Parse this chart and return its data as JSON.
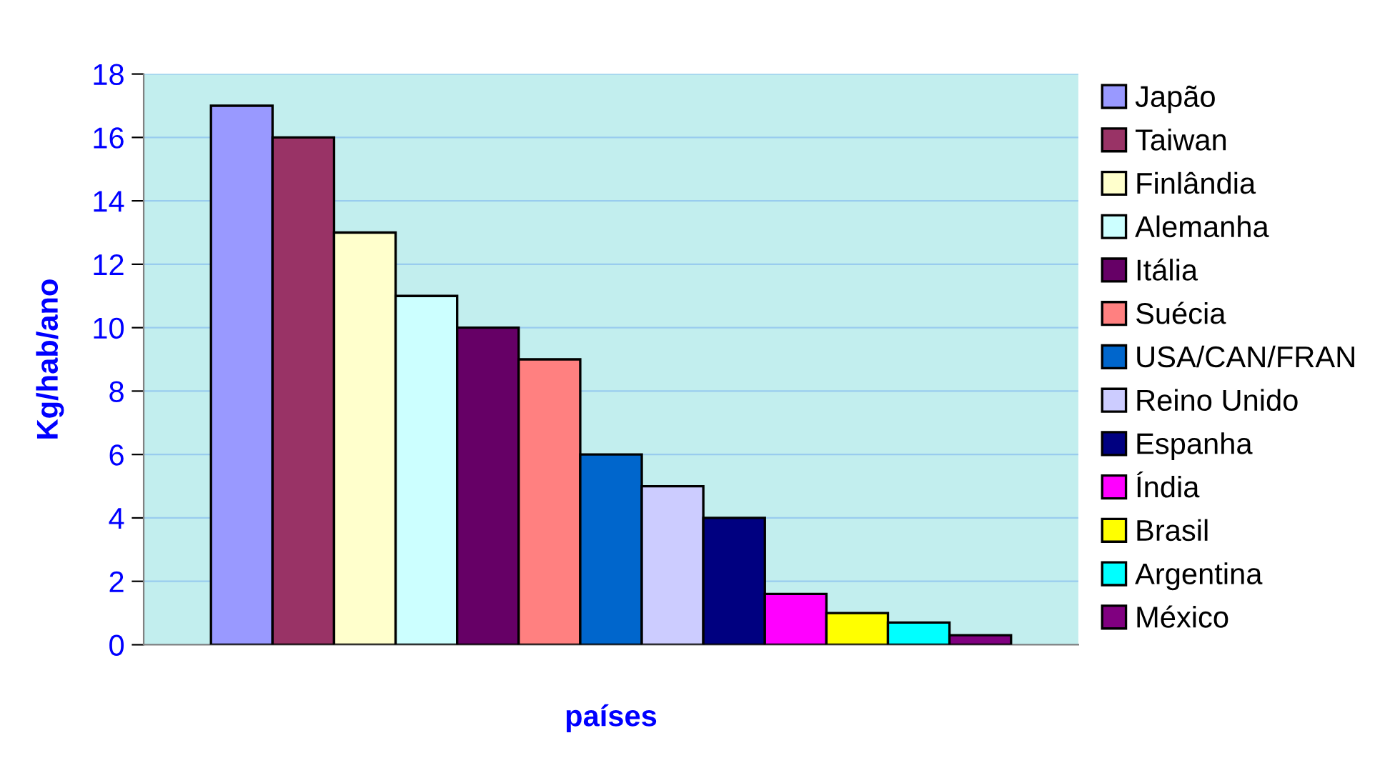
{
  "chart_data": {
    "type": "bar",
    "xlabel": "países",
    "ylabel": "Kg/hab/ano",
    "categories": [
      null
    ],
    "series": [
      {
        "name": "Japão",
        "color": "#9999ff",
        "values": [
          17
        ]
      },
      {
        "name": "Taiwan",
        "color": "#993366",
        "values": [
          16
        ]
      },
      {
        "name": "Finlândia",
        "color": "#ffffcc",
        "values": [
          13
        ]
      },
      {
        "name": "Alemanha",
        "color": "#ccffff",
        "values": [
          11
        ]
      },
      {
        "name": "Itália",
        "color": "#660066",
        "values": [
          10
        ]
      },
      {
        "name": "Suécia",
        "color": "#ff8080",
        "values": [
          9
        ]
      },
      {
        "name": "USA/CAN/FRAN",
        "color": "#0066cc",
        "values": [
          6
        ]
      },
      {
        "name": "Reino Unido",
        "color": "#ccccff",
        "values": [
          5
        ]
      },
      {
        "name": "Espanha",
        "color": "#000080",
        "values": [
          4
        ]
      },
      {
        "name": "Índia",
        "color": "#ff00ff",
        "values": [
          1.6
        ]
      },
      {
        "name": "Brasil",
        "color": "#ffff00",
        "values": [
          1.0
        ]
      },
      {
        "name": "Argentina",
        "color": "#00ffff",
        "values": [
          0.7
        ]
      },
      {
        "name": "México",
        "color": "#800080",
        "values": [
          0.3
        ]
      }
    ],
    "ylim": [
      0,
      18
    ],
    "yticks": [
      0,
      2,
      4,
      6,
      8,
      10,
      12,
      14,
      16,
      18
    ],
    "grid": "y",
    "legend": "right",
    "tick_labels": "y"
  }
}
